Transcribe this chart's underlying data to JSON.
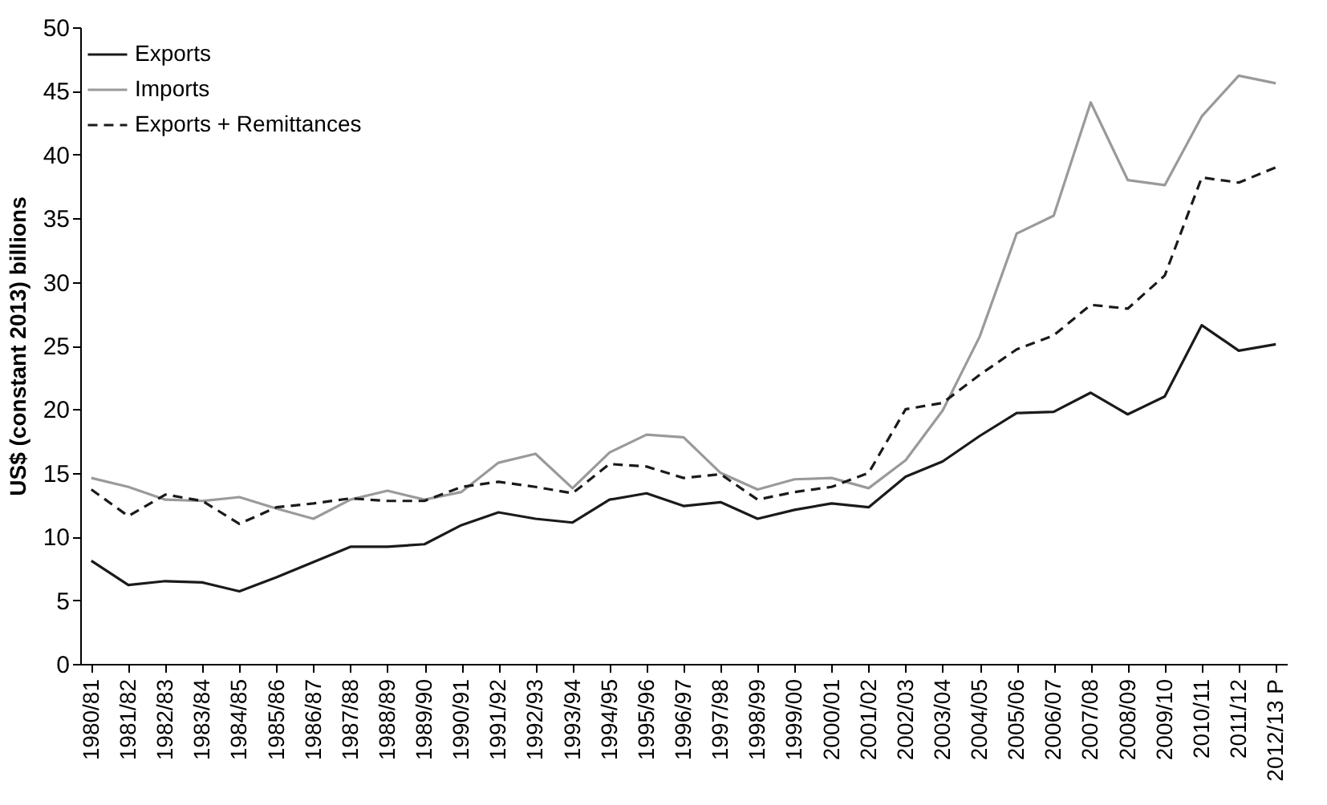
{
  "chart_data": {
    "type": "line",
    "ylabel": "US$ (constant 2013) billions",
    "categories": [
      "1980/81",
      "1981/82",
      "1982/83",
      "1983/84",
      "1984/85",
      "1985/86",
      "1986/87",
      "1987/88",
      "1988/89",
      "1989/90",
      "1990/91",
      "1991/92",
      "1992/93",
      "1993/94",
      "1994/95",
      "1995/96",
      "1996/97",
      "1997/98",
      "1998/99",
      "1999/00",
      "2000/01",
      "2001/02",
      "2002/03",
      "2003/04",
      "2004/05",
      "2005/06",
      "2006/07",
      "2007/08",
      "2008/09",
      "2009/10",
      "2010/11",
      "2011/12",
      "2012/13 P"
    ],
    "series": [
      {
        "name": "Exports",
        "color": "#1a1a1a",
        "line_style": "solid",
        "values": [
          8.1,
          6.2,
          6.5,
          6.4,
          5.7,
          6.8,
          8.0,
          9.2,
          9.2,
          9.4,
          10.9,
          11.9,
          11.4,
          11.1,
          12.9,
          13.4,
          12.4,
          12.7,
          11.4,
          12.1,
          12.6,
          12.3,
          14.7,
          15.9,
          17.9,
          19.7,
          19.8,
          21.3,
          19.6,
          21.0,
          26.6,
          24.6,
          25.1
        ]
      },
      {
        "name": "Imports",
        "color": "#9a9a9a",
        "line_style": "solid",
        "values": [
          14.6,
          13.9,
          12.9,
          12.8,
          13.1,
          12.2,
          11.4,
          12.9,
          13.6,
          12.9,
          13.5,
          15.8,
          16.5,
          13.8,
          16.6,
          18.0,
          17.8,
          15.0,
          13.7,
          14.5,
          14.6,
          13.8,
          16.0,
          19.9,
          25.7,
          33.8,
          35.2,
          44.1,
          38.0,
          37.6,
          43.0,
          46.2,
          45.6
        ]
      },
      {
        "name": "Exports + Remittances",
        "color": "#1a1a1a",
        "line_style": "dashed",
        "values": [
          13.7,
          11.6,
          13.3,
          12.8,
          11.0,
          12.3,
          12.6,
          13.0,
          12.8,
          12.8,
          13.9,
          14.3,
          13.9,
          13.4,
          15.7,
          15.5,
          14.6,
          14.9,
          12.9,
          13.5,
          13.9,
          15.0,
          20.0,
          20.5,
          22.7,
          24.7,
          25.8,
          28.2,
          27.9,
          30.5,
          38.2,
          37.8,
          39.0
        ]
      }
    ],
    "ylim": [
      0,
      50
    ],
    "yticks": [
      0,
      5,
      10,
      15,
      20,
      25,
      30,
      35,
      40,
      45,
      50
    ],
    "grid": false,
    "legend": "top left",
    "marker": "none"
  }
}
